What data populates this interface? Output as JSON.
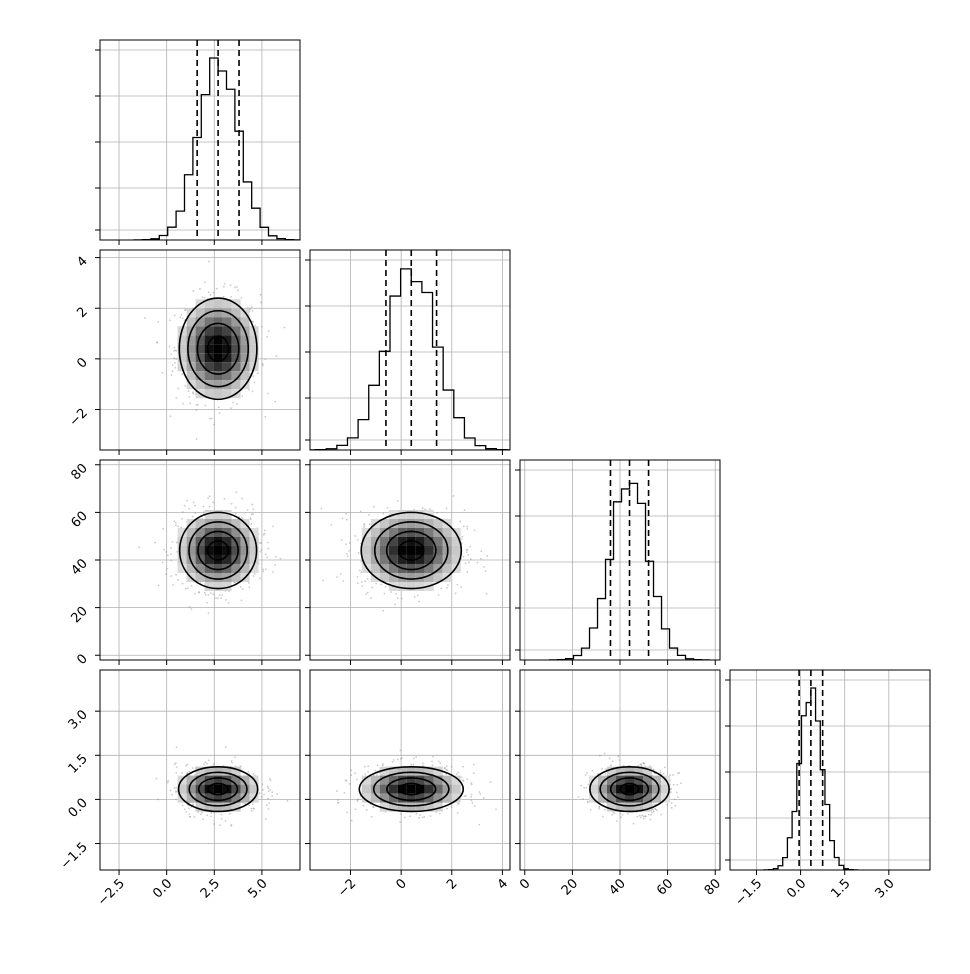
{
  "chart_data": {
    "type": "corner",
    "params": [
      {
        "range": [
          -3.5,
          7.0
        ],
        "ticks": [
          -2.5,
          0.0,
          2.5,
          5.0
        ],
        "tick_labels": [
          "−2.5",
          "0.0",
          "2.5",
          "5.0"
        ],
        "mean": 2.7,
        "sd": 1.05,
        "quantiles": [
          1.6,
          2.7,
          3.8
        ]
      },
      {
        "range": [
          -3.6,
          4.3
        ],
        "ticks": [
          -2,
          0,
          2,
          4
        ],
        "tick_labels": [
          "−2",
          "0",
          "2",
          "4"
        ],
        "mean": 0.4,
        "sd": 1.0,
        "quantiles": [
          -0.6,
          0.4,
          1.4
        ]
      },
      {
        "range": [
          -2,
          82
        ],
        "ticks": [
          0,
          20,
          40,
          60,
          80
        ],
        "tick_labels": [
          "0",
          "20",
          "40",
          "60",
          "80"
        ],
        "mean": 44,
        "sd": 8,
        "quantiles": [
          36,
          44,
          52
        ]
      },
      {
        "range": [
          -2.4,
          4.4
        ],
        "ticks": [
          -1.5,
          0.0,
          1.5,
          3.0
        ],
        "tick_labels": [
          "−1.5",
          "0.0",
          "1.5",
          "3.0"
        ],
        "mean": 0.35,
        "sd": 0.38,
        "quantiles": [
          -0.05,
          0.35,
          0.75
        ]
      }
    ],
    "grid": true,
    "contour_levels": 4,
    "scatter_color": "#8c8c8c",
    "line_color": "#000000"
  }
}
